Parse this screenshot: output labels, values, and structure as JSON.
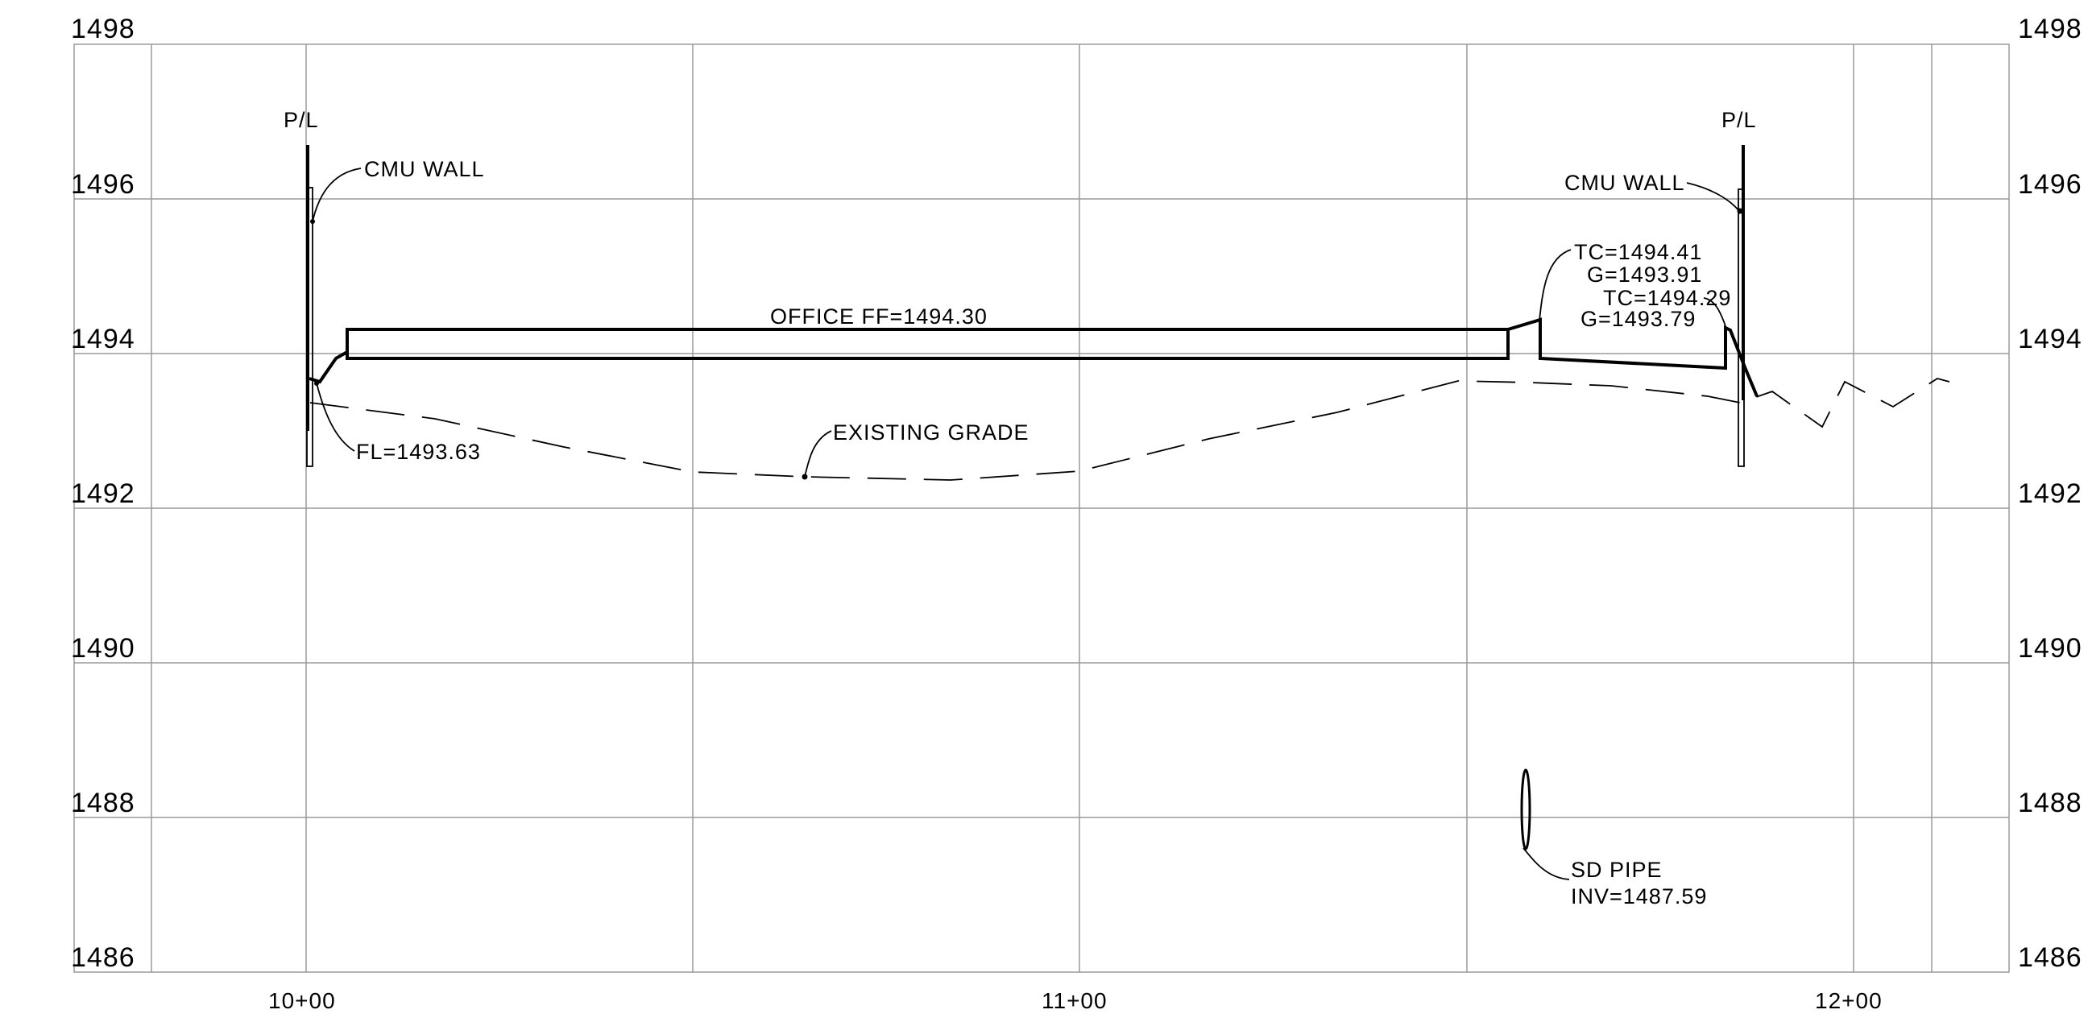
{
  "axes": {
    "y_ticks": [
      "1498",
      "1496",
      "1494",
      "1492",
      "1490",
      "1488",
      "1486"
    ],
    "x_ticks": [
      "10+00",
      "11+00",
      "12+00"
    ],
    "y_range": [
      1486,
      1498
    ],
    "x_range_stations": [
      939.6,
      1140.4
    ],
    "grid": true
  },
  "labels": {
    "pl_left": "P/L",
    "pl_right": "P/L",
    "cmu_wall_left": "CMU WALL",
    "cmu_wall_right": "CMU WALL",
    "office_ff": "OFFICE FF=1494.30",
    "fl": "FL=1493.63",
    "existing_grade": "EXISTING GRADE",
    "tc1": "TC=1494.41",
    "g1": "G=1493.91",
    "tc2": "TC=1494.29",
    "g2": "G=1493.79",
    "sd_pipe": "SD PIPE",
    "inv": "INV=1487.59"
  },
  "colors": {
    "grid": "#9a9a9a",
    "line": "#000000"
  }
}
